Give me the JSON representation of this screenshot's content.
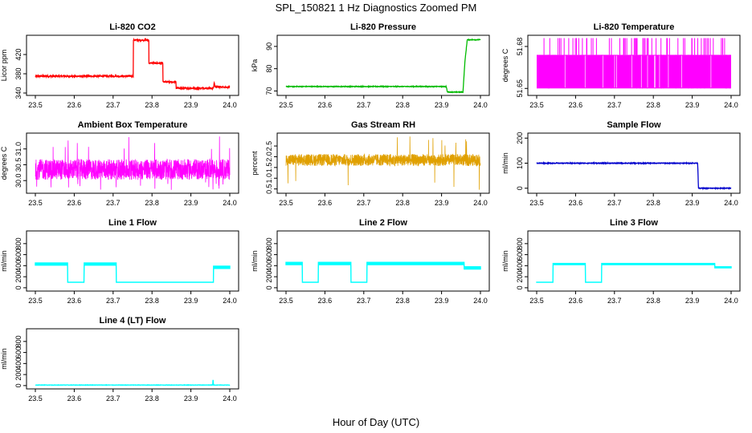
{
  "figure": {
    "title": "SPL_150821  1 Hz Diagnostics Zoomed PM",
    "xlabel": "Hour of Day (UTC)"
  },
  "chart_data": [
    {
      "id": "li820-co2",
      "type": "line",
      "title": "Li-820 CO2",
      "ylabel": "Licor ppm",
      "color": "#ff0000",
      "xlim": [
        23.5,
        24.0
      ],
      "ylim": [
        335,
        460
      ],
      "xticks": [
        "23.5",
        "23.6",
        "23.7",
        "23.8",
        "23.9",
        "24.0"
      ],
      "yticks": [
        {
          "v": 340,
          "label": "340"
        },
        {
          "v": 380,
          "label": "380"
        },
        {
          "v": 420,
          "label": "420"
        }
      ],
      "noise": 1.5,
      "x": [
        23.5,
        23.752,
        23.752,
        23.752,
        23.792,
        23.792,
        23.828,
        23.828,
        23.862,
        23.862,
        23.958,
        23.96,
        23.962,
        23.962,
        24.0
      ],
      "y": [
        375,
        375,
        375,
        450,
        450,
        402,
        402,
        363,
        363,
        350,
        350,
        362,
        353,
        353,
        352
      ]
    },
    {
      "id": "li820-pressure",
      "type": "line",
      "title": "Li-820 Pressure",
      "ylabel": "kPa",
      "color": "#00bb00",
      "xlim": [
        23.5,
        24.0
      ],
      "ylim": [
        68,
        95
      ],
      "xticks": [
        "23.5",
        "23.6",
        "23.7",
        "23.8",
        "23.9",
        "24.0"
      ],
      "yticks": [
        {
          "v": 70,
          "label": "70"
        },
        {
          "v": 80,
          "label": "80"
        },
        {
          "v": 90,
          "label": "90"
        }
      ],
      "noise": 0.15,
      "x": [
        23.5,
        23.912,
        23.915,
        23.955,
        23.96,
        23.966,
        24.0
      ],
      "y": [
        72,
        72,
        69.5,
        69.5,
        83,
        93,
        93
      ]
    },
    {
      "id": "li820-temperature",
      "type": "spiky",
      "title": "Li-820 Temperature",
      "ylabel": "degrees C",
      "color": "#ff00ff",
      "xlim": [
        23.5,
        24.0
      ],
      "ylim": [
        51.645,
        51.688
      ],
      "xticks": [
        "23.5",
        "23.6",
        "23.7",
        "23.8",
        "23.9",
        "24.0"
      ],
      "yticks": [
        {
          "v": 51.65,
          "label": "51.65"
        },
        {
          "v": 51.68,
          "label": "51.68"
        }
      ],
      "band_low": 51.65,
      "band_high": 51.674,
      "spike_high": 51.686,
      "density": 0.7,
      "x": [
        23.5,
        24.0
      ],
      "y": [
        51.662,
        51.662
      ]
    },
    {
      "id": "ambient-box-temperature",
      "type": "noise",
      "title": "Ambient Box Temperature",
      "ylabel": "degrees C",
      "color": "#ff00ff",
      "xlim": [
        23.5,
        24.0
      ],
      "ylim": [
        29.6,
        31.5
      ],
      "xticks": [
        "23.5",
        "23.6",
        "23.7",
        "23.8",
        "23.9",
        "24.0"
      ],
      "yticks": [
        {
          "v": 30.0,
          "label": "30.0"
        },
        {
          "v": 30.5,
          "label": "30.5"
        },
        {
          "v": 31.0,
          "label": "31.0"
        }
      ],
      "center": 30.35,
      "spread": 0.65,
      "outlier_high": 31.4,
      "outlier_low": 29.7,
      "x": [
        23.5,
        24.0
      ],
      "y": [
        30.35,
        30.35
      ]
    },
    {
      "id": "gas-stream-rh",
      "type": "noise",
      "title": "Gas Stream RH",
      "ylabel": "percent",
      "color": "#e0a000",
      "xlim": [
        23.5,
        24.0
      ],
      "ylim": [
        0.3,
        3.1
      ],
      "xticks": [
        "23.5",
        "23.6",
        "23.7",
        "23.8",
        "23.9",
        "24.0"
      ],
      "yticks": [
        {
          "v": 0.5,
          "label": "0.5"
        },
        {
          "v": 1.0,
          "label": "1.0"
        },
        {
          "v": 1.5,
          "label": "1.5"
        },
        {
          "v": 2.0,
          "label": "2.0"
        },
        {
          "v": 2.5,
          "label": "2.5"
        }
      ],
      "center": 1.85,
      "spread": 0.55,
      "outlier_high": 2.95,
      "outlier_low": 0.45,
      "x": [
        23.5,
        24.0
      ],
      "y": [
        1.85,
        1.85
      ]
    },
    {
      "id": "sample-flow",
      "type": "line",
      "title": "Sample Flow",
      "ylabel": "ml/min",
      "color": "#0000cc",
      "xlim": [
        23.5,
        24.0
      ],
      "ylim": [
        -20,
        220
      ],
      "xticks": [
        "23.5",
        "23.6",
        "23.7",
        "23.8",
        "23.9",
        "24.0"
      ],
      "yticks": [
        {
          "v": 0,
          "label": "0"
        },
        {
          "v": 100,
          "label": "100"
        },
        {
          "v": 200,
          "label": "200"
        }
      ],
      "noise": 1.5,
      "x": [
        23.5,
        23.914,
        23.916,
        23.92,
        24.0
      ],
      "y": [
        100,
        100,
        2,
        0,
        0
      ]
    },
    {
      "id": "line-1-flow",
      "type": "band",
      "title": "Line 1 Flow",
      "ylabel": "ml/min",
      "color": "#00ffff",
      "xlim": [
        23.5,
        24.0
      ],
      "ylim": [
        -60,
        1030
      ],
      "xticks": [
        "23.5",
        "23.6",
        "23.7",
        "23.8",
        "23.9",
        "24.0"
      ],
      "yticks": [
        {
          "v": 0,
          "label": "0"
        },
        {
          "v": 200,
          "label": "200"
        },
        {
          "v": 400,
          "label": "400"
        },
        {
          "v": 600,
          "label": "600"
        },
        {
          "v": 800,
          "label": "800"
        }
      ],
      "x": [
        23.5,
        23.583,
        23.583,
        23.625,
        23.625,
        23.708,
        23.708,
        23.958,
        23.958,
        24.0
      ],
      "y": [
        430,
        430,
        100,
        100,
        430,
        430,
        100,
        100,
        370,
        370
      ],
      "band": 40
    },
    {
      "id": "line-2-flow",
      "type": "band",
      "title": "Line 2 Flow",
      "ylabel": "ml/min",
      "color": "#00ffff",
      "xlim": [
        23.5,
        24.0
      ],
      "ylim": [
        -60,
        1030
      ],
      "xticks": [
        "23.5",
        "23.6",
        "23.7",
        "23.8",
        "23.9",
        "24.0"
      ],
      "yticks": [
        {
          "v": 0,
          "label": "0"
        },
        {
          "v": 200,
          "label": "200"
        },
        {
          "v": 400,
          "label": "400"
        },
        {
          "v": 600,
          "label": "600"
        },
        {
          "v": 800,
          "label": "800"
        }
      ],
      "x": [
        23.5,
        23.542,
        23.542,
        23.583,
        23.583,
        23.667,
        23.667,
        23.708,
        23.708,
        23.958,
        23.958,
        24.0
      ],
      "y": [
        440,
        440,
        100,
        100,
        440,
        440,
        100,
        100,
        440,
        440,
        360,
        360
      ],
      "band": 40
    },
    {
      "id": "line-3-flow",
      "type": "band",
      "title": "Line 3 Flow",
      "ylabel": "ml/min",
      "color": "#00ffff",
      "xlim": [
        23.5,
        24.0
      ],
      "ylim": [
        -60,
        1030
      ],
      "xticks": [
        "23.5",
        "23.6",
        "23.7",
        "23.8",
        "23.9",
        "24.0"
      ],
      "yticks": [
        {
          "v": 0,
          "label": "0"
        },
        {
          "v": 200,
          "label": "200"
        },
        {
          "v": 400,
          "label": "400"
        },
        {
          "v": 600,
          "label": "600"
        },
        {
          "v": 800,
          "label": "800"
        }
      ],
      "x": [
        23.5,
        23.542,
        23.542,
        23.625,
        23.625,
        23.667,
        23.667,
        23.958,
        23.958,
        24.0
      ],
      "y": [
        100,
        100,
        430,
        430,
        100,
        100,
        430,
        430,
        370,
        370
      ],
      "band": 20
    },
    {
      "id": "line-4-lt-flow",
      "type": "line",
      "title": "Line 4 (LT) Flow",
      "ylabel": "ml/min",
      "color": "#00ffff",
      "xlim": [
        23.5,
        24.0
      ],
      "ylim": [
        -60,
        1030
      ],
      "xticks": [
        "23.5",
        "23.6",
        "23.7",
        "23.8",
        "23.9",
        "24.0"
      ],
      "yticks": [
        {
          "v": 0,
          "label": "0"
        },
        {
          "v": 200,
          "label": "200"
        },
        {
          "v": 400,
          "label": "400"
        },
        {
          "v": 600,
          "label": "600"
        },
        {
          "v": 800,
          "label": "800"
        }
      ],
      "noise": 3,
      "x": [
        23.5,
        23.956,
        23.957,
        23.958,
        24.0
      ],
      "y": [
        10,
        10,
        130,
        10,
        10
      ]
    }
  ]
}
